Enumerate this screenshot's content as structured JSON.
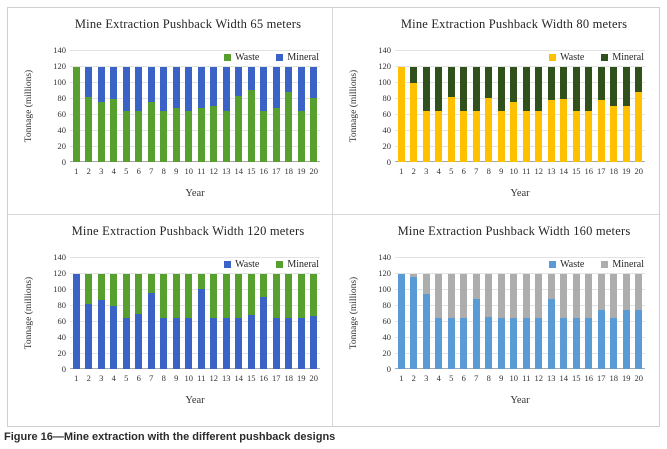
{
  "figure": {
    "caption": "Figure 16—Mine extraction with the different pushback designs"
  },
  "chart_data": [
    {
      "type": "bar",
      "stacked": true,
      "title": "Mine Extraction Pushback Width 65 meters",
      "xlabel": "Year",
      "ylabel": "Tonnage (millions)",
      "ylim": [
        0,
        140
      ],
      "y_ticks": [
        0,
        20,
        40,
        60,
        80,
        100,
        120,
        140
      ],
      "grid": true,
      "legend_position": "top-right",
      "categories": [
        1,
        2,
        3,
        4,
        5,
        6,
        7,
        8,
        9,
        10,
        11,
        12,
        13,
        14,
        15,
        16,
        17,
        18,
        19,
        20
      ],
      "series": [
        {
          "name": "Waste",
          "color": "#57a02f",
          "values": [
            119,
            81,
            75,
            79,
            64,
            64,
            75,
            64,
            67,
            64,
            67,
            70,
            64,
            82,
            90,
            64,
            67,
            88,
            64,
            80
          ]
        },
        {
          "name": "Mineral",
          "color": "#3a63c5",
          "values": [
            0,
            38,
            44,
            40,
            55,
            55,
            44,
            55,
            52,
            55,
            52,
            49,
            55,
            37,
            29,
            55,
            52,
            31,
            55,
            39
          ]
        }
      ]
    },
    {
      "type": "bar",
      "stacked": true,
      "title": "Mine Extraction Pushback Width 80 meters",
      "xlabel": "Year",
      "ylabel": "Tonnage (millions)",
      "ylim": [
        0,
        140
      ],
      "y_ticks": [
        0,
        20,
        40,
        60,
        80,
        100,
        120,
        140
      ],
      "grid": true,
      "legend_position": "top-right",
      "categories": [
        1,
        2,
        3,
        4,
        5,
        6,
        7,
        8,
        9,
        10,
        11,
        12,
        13,
        14,
        15,
        16,
        17,
        18,
        19,
        20
      ],
      "series": [
        {
          "name": "Waste",
          "color": "#ffc000",
          "values": [
            119,
            99,
            64,
            64,
            81,
            64,
            64,
            80,
            64,
            75,
            64,
            64,
            77,
            79,
            64,
            64,
            78,
            70,
            70,
            87
          ]
        },
        {
          "name": "Mineral",
          "color": "#30511c",
          "values": [
            0,
            20,
            55,
            55,
            38,
            55,
            55,
            39,
            55,
            44,
            55,
            55,
            42,
            40,
            55,
            55,
            41,
            49,
            49,
            32
          ]
        }
      ]
    },
    {
      "type": "bar",
      "stacked": true,
      "title": "Mine Extraction Pushback Width 120 meters",
      "xlabel": "Year",
      "ylabel": "Tonnage (millions)",
      "ylim": [
        0,
        140
      ],
      "y_ticks": [
        0,
        20,
        40,
        60,
        80,
        100,
        120,
        140
      ],
      "grid": true,
      "legend_position": "top-right",
      "categories": [
        1,
        2,
        3,
        4,
        5,
        6,
        7,
        8,
        9,
        10,
        11,
        12,
        13,
        14,
        15,
        16,
        17,
        18,
        19,
        20
      ],
      "series": [
        {
          "name": "Waste",
          "color": "#3a63c5",
          "values": [
            119,
            81,
            86,
            79,
            64,
            69,
            95,
            64,
            64,
            64,
            100,
            64,
            64,
            64,
            68,
            90,
            64,
            64,
            64,
            66
          ]
        },
        {
          "name": "Mineral",
          "color": "#57a02f",
          "values": [
            0,
            38,
            33,
            40,
            55,
            50,
            24,
            55,
            55,
            55,
            19,
            55,
            55,
            55,
            51,
            29,
            55,
            55,
            55,
            53
          ]
        }
      ]
    },
    {
      "type": "bar",
      "stacked": true,
      "title": "Mine Extraction Pushback Width 160 meters",
      "xlabel": "Year",
      "ylabel": "Tonnage (millions)",
      "ylim": [
        0,
        140
      ],
      "y_ticks": [
        0,
        20,
        40,
        60,
        80,
        100,
        120,
        140
      ],
      "grid": true,
      "legend_position": "top-right",
      "categories": [
        1,
        2,
        3,
        4,
        5,
        6,
        7,
        8,
        9,
        10,
        11,
        12,
        13,
        14,
        15,
        16,
        17,
        18,
        19,
        20
      ],
      "series": [
        {
          "name": "Waste",
          "color": "#5b9bd5",
          "values": [
            119,
            115,
            94,
            64,
            64,
            64,
            88,
            65,
            64,
            64,
            64,
            64,
            88,
            64,
            64,
            64,
            74,
            64,
            74,
            74
          ]
        },
        {
          "name": "Mineral",
          "color": "#adadad",
          "values": [
            0,
            4,
            25,
            55,
            55,
            55,
            31,
            54,
            55,
            55,
            55,
            55,
            31,
            55,
            55,
            55,
            45,
            55,
            45,
            45
          ]
        }
      ]
    }
  ]
}
